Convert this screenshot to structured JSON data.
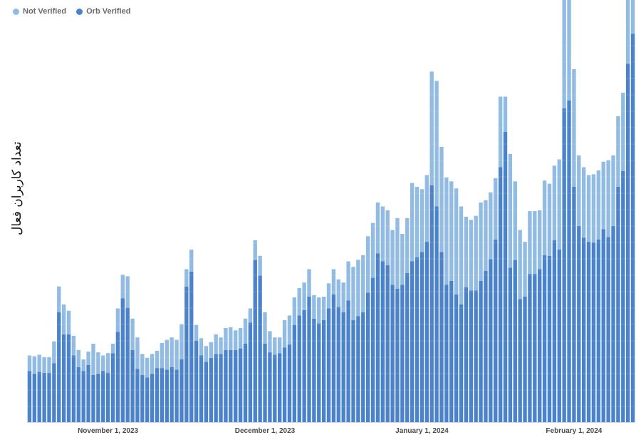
{
  "legend": [
    {
      "name": "Not Verified",
      "color": "#90bbe6"
    },
    {
      "name": "Orb Verified",
      "color": "#4a82d2"
    }
  ],
  "chart_data": {
    "type": "bar",
    "stacked": true,
    "ylabel": "تعداد کاربران فعال",
    "xlabel": "",
    "grid": false,
    "legend_position": "top-left",
    "x_tick_labels": [
      "November 1, 2023",
      "December 1, 2023",
      "January 1, 2024",
      "February 1, 2024"
    ],
    "x_tick_indices": [
      16,
      48,
      80,
      111
    ],
    "series": [
      {
        "name": "Orb Verified",
        "color": "#4a82d2",
        "values": [
          65,
          62,
          64,
          63,
          63,
          75,
          140,
          112,
          112,
          85,
          70,
          65,
          73,
          60,
          62,
          65,
          63,
          88,
          115,
          158,
          146,
          92,
          68,
          60,
          57,
          62,
          69,
          69,
          67,
          70,
          67,
          80,
          173,
          192,
          104,
          85,
          77,
          82,
          87,
          87,
          92,
          92,
          92,
          94,
          100,
          127,
          207,
          187,
          100,
          89,
          86,
          88,
          95,
          99,
          124,
          136,
          143,
          160,
          132,
          126,
          130,
          145,
          163,
          147,
          140,
          155,
          130,
          135,
          140,
          165,
          184,
          215,
          205,
          200,
          175,
          170,
          175,
          190,
          205,
          210,
          217,
          230,
          302,
          275,
          217,
          175,
          180,
          163,
          150,
          172,
          168,
          168,
          180,
          193,
          208,
          233,
          325,
          370,
          197,
          207,
          157,
          160,
          189,
          189,
          195,
          213,
          212,
          232,
          220,
          400,
          410,
          300,
          250,
          235,
          230,
          229,
          233,
          246,
          236,
          250,
          300,
          320,
          457,
          495
        ]
      },
      {
        "name": "Not Verified",
        "color": "#90bbe6",
        "values": [
          20,
          22,
          22,
          20,
          20,
          28,
          33,
          38,
          30,
          25,
          22,
          15,
          17,
          40,
          27,
          20,
          25,
          12,
          30,
          30,
          40,
          40,
          40,
          27,
          25,
          25,
          22,
          32,
          38,
          38,
          38,
          45,
          22,
          28,
          20,
          22,
          20,
          20,
          25,
          21,
          28,
          29,
          25,
          26,
          32,
          18,
          25,
          25,
          40,
          27,
          22,
          20,
          35,
          37,
          35,
          35,
          35,
          35,
          30,
          33,
          30,
          32,
          32,
          35,
          38,
          50,
          68,
          72,
          73,
          72,
          70,
          65,
          70,
          70,
          70,
          90,
          65,
          70,
          100,
          90,
          80,
          85,
          145,
          160,
          134,
          137,
          127,
          135,
          125,
          90,
          90,
          95,
          100,
          90,
          85,
          78,
          90,
          45,
          145,
          100,
          88,
          70,
          80,
          80,
          75,
          95,
          92,
          95,
          115,
          180,
          158,
          150,
          90,
          90,
          85,
          87,
          88,
          86,
          98,
          90,
          90,
          100,
          88,
          110
        ]
      }
    ]
  }
}
